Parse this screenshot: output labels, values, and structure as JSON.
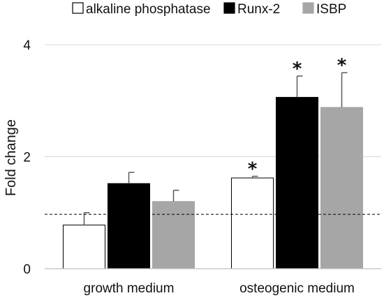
{
  "chart_data": {
    "type": "bar",
    "categories": [
      "growth medium",
      "osteogenic medium"
    ],
    "series": [
      {
        "name": "alkaline phosphatase",
        "color": "#ffffff",
        "stroke": "#000000",
        "values": [
          0.78,
          1.62
        ],
        "errors": [
          0.22,
          0.03
        ],
        "significance": [
          "",
          "*"
        ]
      },
      {
        "name": "Runx-2",
        "color": "#000000",
        "stroke": "#000000",
        "values": [
          1.52,
          3.06
        ],
        "errors": [
          0.2,
          0.38
        ],
        "significance": [
          "",
          "*"
        ]
      },
      {
        "name": "ISBP",
        "color": "#a6a6a6",
        "stroke": "#a6a6a6",
        "values": [
          1.2,
          2.88
        ],
        "errors": [
          0.2,
          0.62
        ],
        "significance": [
          "",
          "*"
        ]
      }
    ],
    "ylabel": "Fold change",
    "xlabel": "",
    "ylim": [
      0,
      4
    ],
    "yticks": [
      0,
      2,
      4
    ],
    "reference_line": 0.97,
    "legend_position": "top",
    "grid": true
  }
}
